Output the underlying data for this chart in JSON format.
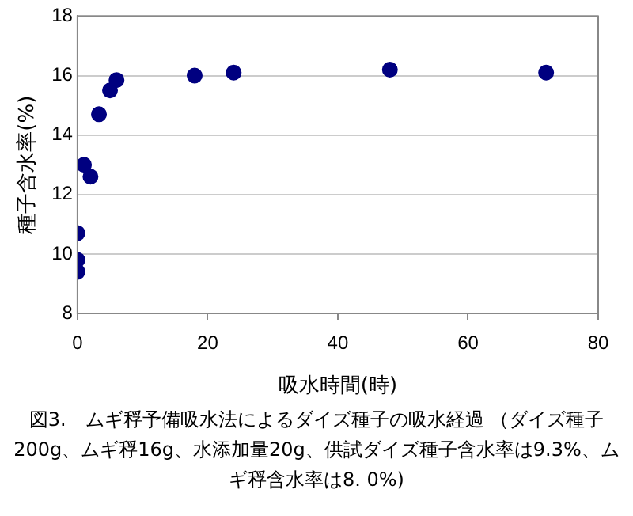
{
  "chart_data": {
    "type": "scatter",
    "xlabel": "吸水時間(時)",
    "ylabel": "種子含水率(%)",
    "x": [
      0,
      0,
      0,
      1,
      2,
      3.3,
      5,
      6,
      18,
      24,
      48,
      72
    ],
    "series": [
      {
        "color": "#000080",
        "values": [
          9.4,
          9.8,
          10.7,
          13.0,
          12.6,
          14.7,
          15.5,
          15.85,
          16.0,
          16.1,
          16.2,
          16.1
        ]
      }
    ],
    "xlim": [
      0,
      80
    ],
    "xticks": [
      0,
      20,
      40,
      60,
      80
    ],
    "ylim": [
      8,
      18
    ],
    "yticks": [
      8,
      10,
      12,
      14,
      16,
      18
    ],
    "grid": "y",
    "legend": false,
    "marker": "circle",
    "annotations": [
      "図3.　ムギ稃予備吸水法によるダイズ種子の吸水経過 （ダイズ種子200g、ムギ稃16g、水添加量20g、供試ダイズ種子含水率は9.3%、ムギ稃含水率は8. 0%)"
    ]
  }
}
